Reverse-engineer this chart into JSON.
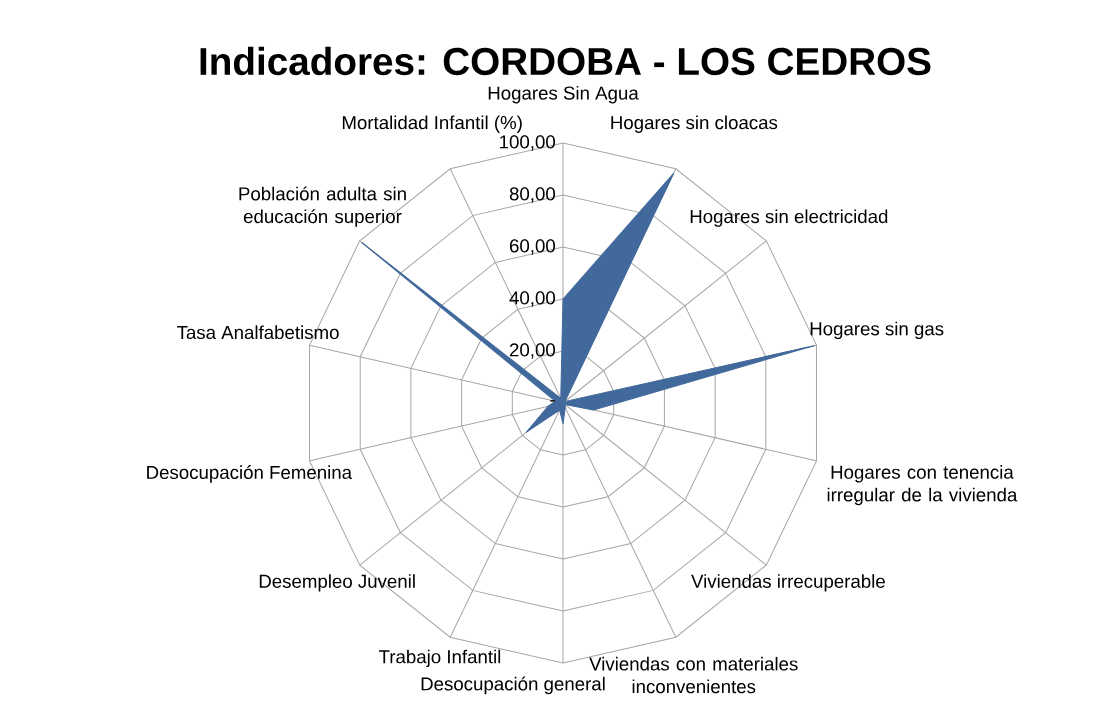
{
  "chart_data": {
    "type": "radar",
    "title": "Indicadores: CORDOBA - LOS CEDROS",
    "categories": [
      "Hogares Sin Agua",
      "Hogares sin cloacas",
      "Hogares sin electricidad",
      "Hogares sin gas",
      "Hogares con tenencia irregular de la vivienda",
      "Viviendas irrecuperable",
      "Viviendas con materiales inconvenientes",
      "Desocupación general",
      "Trabajo Infantil",
      "Desempleo Juvenil",
      "Desocupación Femenina",
      "Tasa Analfabetismo",
      "Población adulta  sin educación superior",
      "Mortalidad Infantil (%)"
    ],
    "series": [
      {
        "color": "#41699c",
        "values": [
          40,
          98,
          1,
          99,
          12,
          1,
          2,
          8,
          3,
          18,
          6,
          3,
          99,
          2
        ]
      }
    ],
    "ylim": [
      0,
      100
    ],
    "yticks": [
      {
        "value": 0,
        "label": "-"
      },
      {
        "value": 20,
        "label": "20,00"
      },
      {
        "value": 40,
        "label": "40,00"
      },
      {
        "value": 60,
        "label": "60,00"
      },
      {
        "value": 80,
        "label": "80,00"
      },
      {
        "value": 100,
        "label": "100,00"
      }
    ],
    "grid": true
  }
}
